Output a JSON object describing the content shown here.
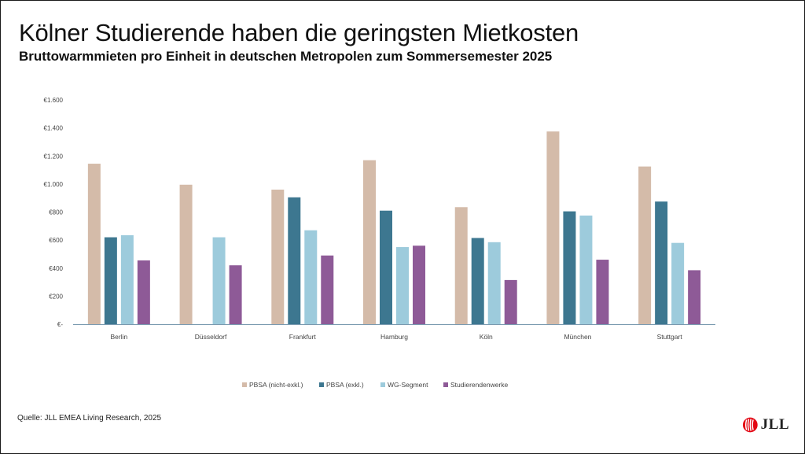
{
  "header": {
    "title": "Kölner Studierende haben die geringsten Mietkosten",
    "subtitle": "Bruttowarmmieten pro Einheit in deutschen Metropolen zum Sommersemester 2025"
  },
  "footer": {
    "source": "Quelle: JLL EMEA Living Research, 2025",
    "logo_text": "JLL"
  },
  "colors": {
    "axis": "#7a9ab0",
    "tick_text": "#444444",
    "logo_red": "#e30613"
  },
  "chart_data": {
    "type": "bar",
    "categories": [
      "Berlin",
      "Düsseldorf",
      "Frankfurt",
      "Hamburg",
      "Köln",
      "München",
      "Stuttgart"
    ],
    "ylim": [
      0,
      1600
    ],
    "y_ticks": [
      0,
      200,
      400,
      600,
      800,
      1000,
      1200,
      1400,
      1600
    ],
    "y_tick_labels": [
      "€-",
      "€200",
      "€400",
      "€600",
      "€800",
      "€1.000",
      "€1.200",
      "€1.400",
      "€1.600"
    ],
    "grid": false,
    "legend_position": "bottom",
    "series": [
      {
        "name": "PBSA (nicht-exkl.)",
        "color": "#d4bba9",
        "values": [
          1145,
          995,
          960,
          1170,
          835,
          1375,
          1125
        ]
      },
      {
        "name": "PBSA (exkl.)",
        "color": "#3d7790",
        "values": [
          620,
          null,
          905,
          810,
          615,
          805,
          875
        ]
      },
      {
        "name": "WG-Segment",
        "color": "#9dcbdc",
        "values": [
          635,
          620,
          670,
          550,
          585,
          775,
          580
        ]
      },
      {
        "name": "Studierendenwerke",
        "color": "#8e5a97",
        "values": [
          455,
          420,
          490,
          560,
          315,
          460,
          385
        ]
      }
    ]
  }
}
